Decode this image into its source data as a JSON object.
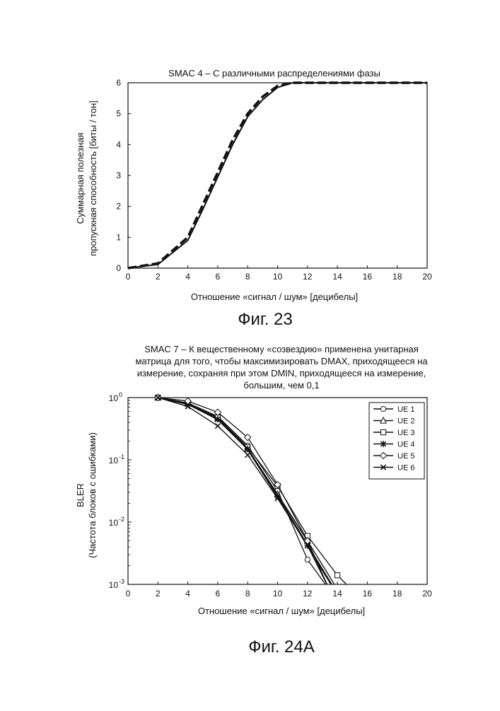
{
  "chart_data": [
    {
      "type": "line",
      "title": "SMAC 4 – С различными распределениями фазы",
      "xlabel": "Отношение «сигнал / шум» [децибелы]",
      "ylabel_lines": [
        "Суммарная полезная",
        "пропускная способность [биты / тон]"
      ],
      "xlim": [
        0,
        20
      ],
      "ylim": [
        0,
        6
      ],
      "xticks": [
        "0",
        "2",
        "4",
        "6",
        "8",
        "10",
        "12",
        "14",
        "16",
        "18",
        "20"
      ],
      "yticks": [
        "0",
        "1",
        "2",
        "3",
        "4",
        "5",
        "6"
      ],
      "grid": false,
      "caption": "Фиг. 23",
      "series": [
        {
          "style": "solid",
          "x": [
            0,
            2,
            4,
            5,
            6,
            7,
            8,
            9,
            10,
            11,
            12,
            20
          ],
          "y": [
            0,
            0.12,
            0.9,
            1.9,
            2.95,
            4.0,
            4.9,
            5.45,
            5.85,
            6.0,
            6.0,
            6.0
          ]
        },
        {
          "style": "dashed",
          "x": [
            0,
            2,
            4,
            5,
            6,
            7,
            8,
            9,
            10,
            11,
            12,
            20
          ],
          "y": [
            0,
            0.15,
            1.0,
            2.05,
            3.1,
            4.15,
            5.0,
            5.55,
            5.9,
            6.0,
            6.0,
            6.0
          ]
        }
      ]
    },
    {
      "type": "line",
      "title_lines": [
        "SMAC 7 – К вещественному «созвездию» применена унитарная",
        "матрица для того, чтобы максимизировать DMAX, приходящееся на",
        "измерение, сохраняя при этом DMIN, приходящееся на измерение,",
        "большим, чем 0,1"
      ],
      "xlabel": "Отношение «сигнал / шум» [децибелы]",
      "ylabel_lines": [
        "BLER",
        "(Частота блоков с ошибками)"
      ],
      "xlim": [
        0,
        20
      ],
      "ylim": [
        0.001,
        1
      ],
      "yscale": "log",
      "xticks": [
        "0",
        "2",
        "4",
        "6",
        "8",
        "10",
        "12",
        "14",
        "16",
        "18",
        "20"
      ],
      "ytick_values": [
        1,
        0.1,
        0.01,
        0.001
      ],
      "ytick_bases": [
        "10",
        "10",
        "10",
        "10"
      ],
      "ytick_exps": [
        "0",
        "-1",
        "-2",
        "-3"
      ],
      "grid": false,
      "legend_position": "top-right",
      "caption": "Фиг. 24A",
      "series": [
        {
          "name": "UE 1",
          "marker": "circle",
          "x": [
            2,
            4,
            6,
            8,
            10,
            12,
            13.2
          ],
          "y": [
            1,
            0.82,
            0.5,
            0.17,
            0.032,
            0.0025,
            0.001
          ]
        },
        {
          "name": "UE 2",
          "marker": "triangle",
          "x": [
            2,
            4,
            6,
            8,
            10,
            12,
            13.3
          ],
          "y": [
            1,
            0.8,
            0.46,
            0.15,
            0.028,
            0.005,
            0.001
          ]
        },
        {
          "name": "UE 3",
          "marker": "square",
          "x": [
            2,
            4,
            6,
            8,
            10,
            12,
            14,
            14.6
          ],
          "y": [
            1,
            0.8,
            0.48,
            0.16,
            0.038,
            0.006,
            0.0014,
            0.001
          ]
        },
        {
          "name": "UE 4",
          "marker": "star",
          "x": [
            2,
            4,
            6,
            8,
            10,
            12,
            13.6
          ],
          "y": [
            1,
            0.79,
            0.45,
            0.15,
            0.026,
            0.0042,
            0.001
          ]
        },
        {
          "name": "UE 5",
          "marker": "diamond",
          "x": [
            2,
            4,
            6,
            8,
            10,
            12,
            13.8
          ],
          "y": [
            1,
            0.88,
            0.58,
            0.23,
            0.04,
            0.005,
            0.001
          ]
        },
        {
          "name": "UE 6",
          "marker": "x",
          "x": [
            2,
            4,
            6,
            8,
            10,
            12,
            13.3
          ],
          "y": [
            1,
            0.72,
            0.35,
            0.12,
            0.024,
            0.0042,
            0.001
          ]
        }
      ]
    }
  ]
}
